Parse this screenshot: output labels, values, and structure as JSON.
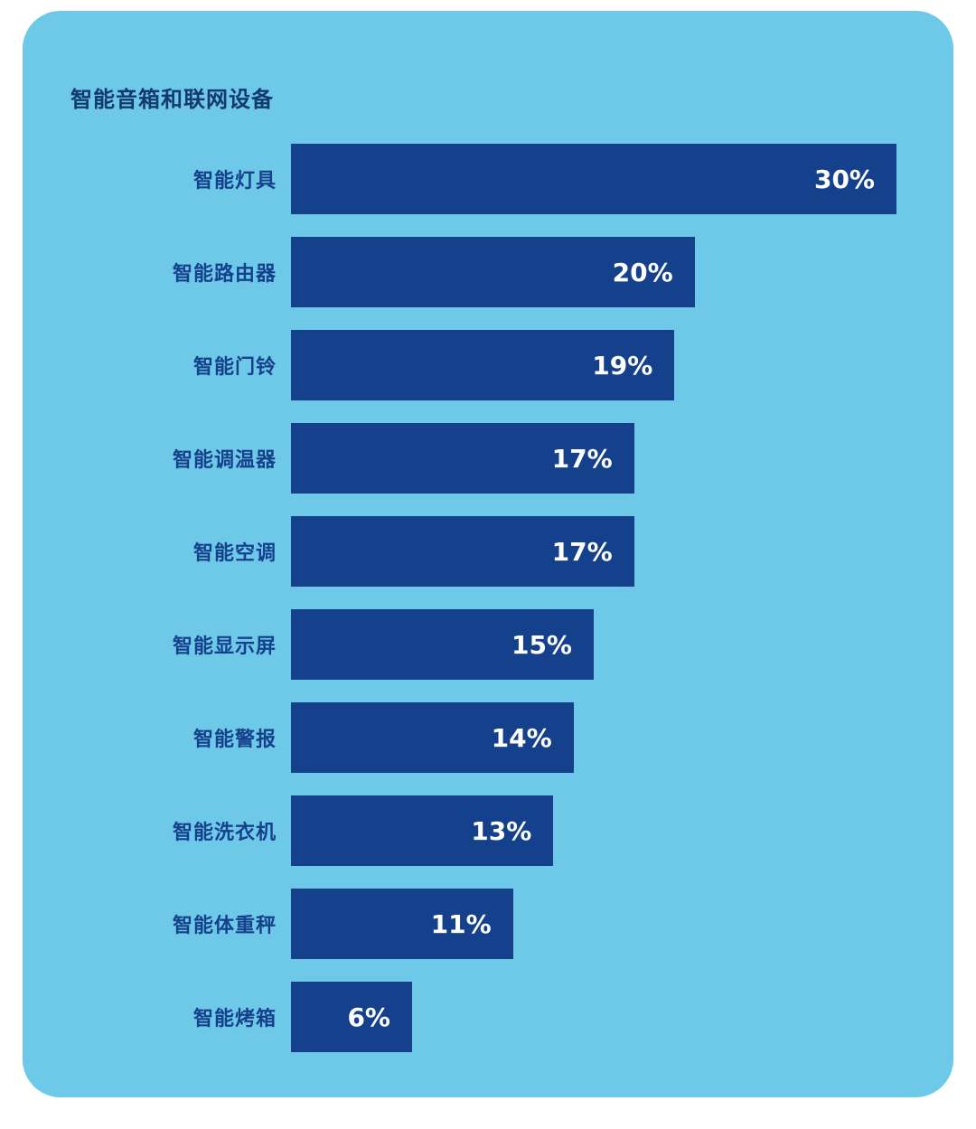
{
  "card": {
    "title": "智能音箱和联网设备",
    "background_color": "#6ec8e8",
    "bar_color": "#15418c",
    "label_color": "#15418c",
    "value_color": "#ffffff"
  },
  "chart_data": {
    "type": "bar",
    "orientation": "horizontal",
    "title": "智能音箱和联网设备",
    "categories": [
      "智能灯具",
      "智能路由器",
      "智能门铃",
      "智能调温器",
      "智能空调",
      "智能显示屏",
      "智能警报",
      "智能洗衣机",
      "智能体重秤",
      "智能烤箱"
    ],
    "values": [
      30,
      20,
      19,
      17,
      17,
      15,
      14,
      13,
      11,
      6
    ],
    "value_suffix": "%",
    "xlabel": "",
    "ylabel": "",
    "xlim": [
      0,
      30
    ],
    "grid": false,
    "legend": false,
    "value_labels": "inside-end"
  }
}
